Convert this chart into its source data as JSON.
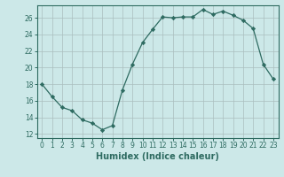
{
  "x": [
    0,
    1,
    2,
    3,
    4,
    5,
    6,
    7,
    8,
    9,
    10,
    11,
    12,
    13,
    14,
    15,
    16,
    17,
    18,
    19,
    20,
    21,
    22,
    23
  ],
  "y": [
    18,
    16.5,
    15.2,
    14.8,
    13.7,
    13.3,
    12.5,
    13.0,
    17.3,
    20.4,
    23.0,
    24.6,
    26.1,
    26.0,
    26.1,
    26.1,
    27.0,
    26.4,
    26.8,
    26.3,
    25.7,
    24.7,
    20.4,
    18.6
  ],
  "xlabel": "Humidex (Indice chaleur)",
  "ylabel": "",
  "xlim": [
    -0.5,
    23.5
  ],
  "ylim": [
    11.5,
    27.5
  ],
  "yticks": [
    12,
    14,
    16,
    18,
    20,
    22,
    24,
    26
  ],
  "xticks": [
    0,
    1,
    2,
    3,
    4,
    5,
    6,
    7,
    8,
    9,
    10,
    11,
    12,
    13,
    14,
    15,
    16,
    17,
    18,
    19,
    20,
    21,
    22,
    23
  ],
  "line_color": "#2e6b61",
  "marker": "D",
  "marker_size": 2.2,
  "bg_color": "#cce8e8",
  "grid_color": "#aabebe",
  "axes_color": "#2e6b61",
  "tick_fontsize": 5.5,
  "xlabel_fontsize": 7.0
}
